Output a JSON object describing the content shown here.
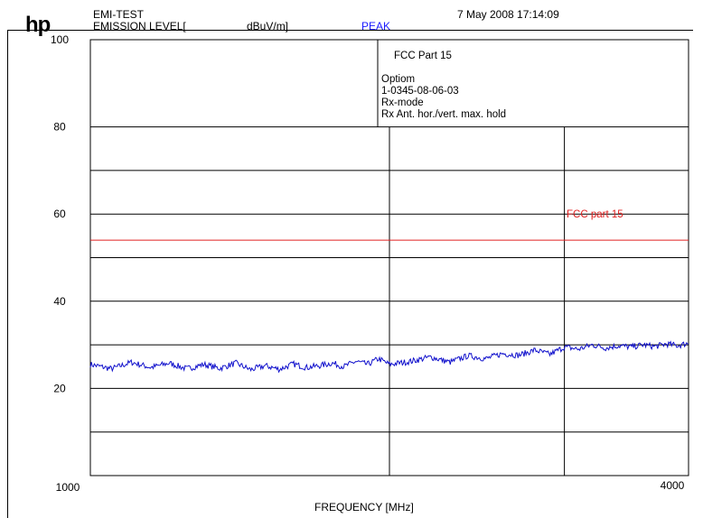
{
  "header": {
    "logo": "hp",
    "title": "EMI-TEST",
    "level_label": "EMISSION LEVEL[",
    "unit_label": "dBuV/m]",
    "detector": "PEAK",
    "datetime": "7 May 2008  17:14:09"
  },
  "info_box": {
    "line1": "FCC Part 15",
    "line2": "Optiom",
    "line3": "1-0345-08-06-03",
    "line4": "Rx-mode",
    "line5": "Rx Ant. hor./vert. max. hold"
  },
  "colors": {
    "trace": "#1010cc",
    "limit": "#e02020",
    "grid": "#000000"
  },
  "chart_data": {
    "type": "line",
    "title": "",
    "xlabel": "FREQUENCY [MHz]",
    "ylabel": "EMISSION LEVEL[ dBuV/m]",
    "xlim": [
      1000,
      4000
    ],
    "ylim": [
      0,
      100
    ],
    "x_scale": "log",
    "grid": true,
    "y_tick_labels": [
      "100",
      "80",
      "60",
      "40",
      "20"
    ],
    "x_tick_labels": [
      "1000",
      "4000"
    ],
    "limit_line": {
      "name": "FCC part 15",
      "value": 54
    },
    "series": [
      {
        "x": [
          1000,
          1050,
          1100,
          1150,
          1200,
          1250,
          1300,
          1350,
          1400,
          1450,
          1500,
          1550,
          1600,
          1650,
          1700,
          1750,
          1800,
          1850,
          1900,
          1950,
          2000,
          2100,
          2200,
          2300,
          2400,
          2500,
          2600,
          2700,
          2800,
          2900,
          3000,
          3100,
          3200,
          3300,
          3400,
          3500,
          3600,
          3700,
          3800,
          3900,
          4000
        ],
        "values": [
          25.5,
          24.5,
          26.0,
          24.8,
          25.8,
          24.5,
          25.5,
          24.6,
          25.8,
          24.3,
          25.2,
          24.4,
          25.6,
          24.8,
          25.2,
          25.8,
          25.0,
          26.2,
          25.5,
          26.8,
          25.5,
          26.2,
          27.2,
          26.0,
          27.5,
          26.8,
          28.0,
          27.6,
          28.8,
          27.8,
          29.5,
          29.0,
          30.0,
          29.3,
          29.8,
          29.5,
          30.0,
          29.6,
          30.2,
          29.8,
          30.4
        ]
      }
    ]
  }
}
